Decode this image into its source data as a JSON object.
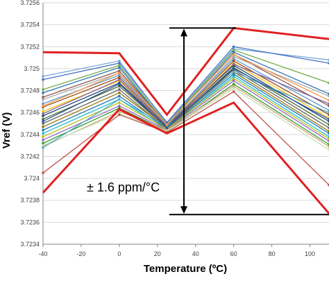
{
  "chart_data": {
    "type": "line",
    "xlabel": "Temperature (ºC)",
    "ylabel": "Vref (V)",
    "x": [
      -40,
      0,
      25,
      60,
      110
    ],
    "xlim": [
      -40,
      110
    ],
    "ylim": [
      3.7234,
      3.7256
    ],
    "xticks": [
      "-40",
      "-20",
      "0",
      "20",
      "40",
      "60",
      "80",
      "100"
    ],
    "xtick_values": [
      -40,
      -20,
      0,
      20,
      40,
      60,
      80,
      100
    ],
    "yticks": [
      "3.7234",
      "3.7236",
      "3.7238",
      "3.724",
      "3.7242",
      "3.7244",
      "3.7246",
      "3.7248",
      "3.725",
      "3.7252",
      "3.7254",
      "3.7256"
    ],
    "ytick_values": [
      3.7234,
      3.7236,
      3.7238,
      3.724,
      3.7242,
      3.7244,
      3.7246,
      3.7248,
      3.725,
      3.7252,
      3.7254,
      3.7256
    ],
    "grid": "horizontal",
    "annotation": "± 1.6 ppm/°C",
    "bracket_y": [
      3.72537,
      3.72367
    ],
    "bounds": [
      {
        "values": [
          3.72515,
          3.72514,
          3.72458,
          3.72537,
          3.72527
        ],
        "color": "#e02020"
      },
      {
        "values": [
          3.72387,
          3.72463,
          3.72441,
          3.72469,
          3.72368
        ],
        "color": "#e02020"
      }
    ],
    "series": [
      {
        "values": [
          3.72493,
          3.72507,
          3.7245,
          3.72518,
          3.72508
        ],
        "color": "#7aa8d8"
      },
      {
        "values": [
          3.7249,
          3.72505,
          3.72451,
          3.7252,
          3.72505
        ],
        "color": "#4472c4"
      },
      {
        "values": [
          3.72481,
          3.72503,
          3.72449,
          3.72517,
          3.72487
        ],
        "color": "#70ad47"
      },
      {
        "values": [
          3.72478,
          3.72501,
          3.72448,
          3.72515,
          3.72477
        ],
        "color": "#2e75b6"
      },
      {
        "values": [
          3.72474,
          3.72498,
          3.72449,
          3.72513,
          3.72466
        ],
        "color": "#8c564b"
      },
      {
        "values": [
          3.72472,
          3.72496,
          3.72447,
          3.72511,
          3.72475
        ],
        "color": "#a9a9a9"
      },
      {
        "values": [
          3.72468,
          3.72494,
          3.72448,
          3.72509,
          3.72462
        ],
        "color": "#5b9bd5"
      },
      {
        "values": [
          3.72465,
          3.72492,
          3.72447,
          3.72507,
          3.72458
        ],
        "color": "#9e480e"
      },
      {
        "values": [
          3.72461,
          3.72489,
          3.72446,
          3.72505,
          3.72455
        ],
        "color": "#ffc000"
      },
      {
        "values": [
          3.72457,
          3.72487,
          3.72447,
          3.72503,
          3.72452
        ],
        "color": "#264478"
      },
      {
        "values": [
          3.72454,
          3.72484,
          3.72446,
          3.72501,
          3.72449
        ],
        "color": "#43682b"
      },
      {
        "values": [
          3.7245,
          3.72481,
          3.72445,
          3.72499,
          3.72446
        ],
        "color": "#636363"
      },
      {
        "values": [
          3.72447,
          3.72478,
          3.72446,
          3.72497,
          3.72443
        ],
        "color": "#997300"
      },
      {
        "values": [
          3.72444,
          3.72475,
          3.72445,
          3.72495,
          3.72441
        ],
        "color": "#1f77b4"
      },
      {
        "values": [
          3.72441,
          3.72472,
          3.72444,
          3.72493,
          3.72438
        ],
        "color": "#17becf"
      },
      {
        "values": [
          3.72438,
          3.72469,
          3.72445,
          3.72491,
          3.72436
        ],
        "color": "#bcbd22"
      },
      {
        "values": [
          3.72435,
          3.72466,
          3.72444,
          3.72489,
          3.72434
        ],
        "color": "#9467bd"
      },
      {
        "values": [
          3.72432,
          3.72464,
          3.72443,
          3.72486,
          3.72431
        ],
        "color": "#2ca02c"
      },
      {
        "values": [
          3.72429,
          3.72461,
          3.72444,
          3.72484,
          3.72429
        ],
        "color": "#d2a679"
      },
      {
        "values": [
          3.7243,
          3.72459,
          3.72443,
          3.72482,
          3.72426
        ],
        "color": "#c5e0b4"
      },
      {
        "values": [
          3.72405,
          3.72458,
          3.72442,
          3.72479,
          3.72394
        ],
        "color": "#c0504d"
      },
      {
        "values": [
          3.72428,
          3.72472,
          3.72447,
          3.72497,
          3.7246
        ],
        "color": "#4bacc6"
      },
      {
        "values": [
          3.72459,
          3.7249,
          3.72446,
          3.72504,
          3.72468
        ],
        "color": "#8064a2"
      },
      {
        "values": [
          3.72466,
          3.72496,
          3.72449,
          3.72513,
          3.72471
        ],
        "color": "#f79646"
      },
      {
        "values": [
          3.72452,
          3.72486,
          3.72446,
          3.725,
          3.72454
        ],
        "color": "#2f5597"
      }
    ]
  }
}
